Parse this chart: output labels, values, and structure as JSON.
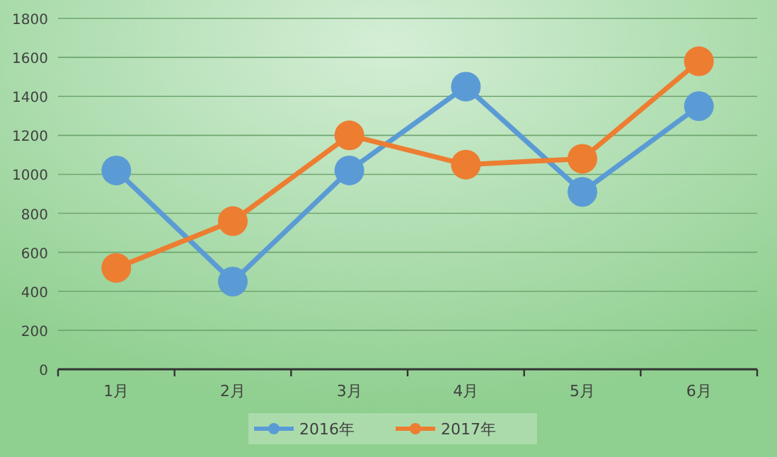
{
  "chart_data": {
    "type": "line",
    "categories": [
      "1月",
      "2月",
      "3月",
      "4月",
      "5月",
      "6月"
    ],
    "series": [
      {
        "name": "2016年",
        "color": "#5b9bd5",
        "values": [
          1020,
          450,
          1020,
          1450,
          910,
          1350
        ]
      },
      {
        "name": "2017年",
        "color": "#ed7d31",
        "values": [
          520,
          760,
          1200,
          1050,
          1080,
          1580
        ]
      }
    ],
    "ylim": [
      0,
      1800
    ],
    "yticks": [
      0,
      200,
      400,
      600,
      800,
      1000,
      1200,
      1400,
      1600,
      1800
    ],
    "grid": "y",
    "legend": "bottom",
    "marker": "circle",
    "line_style": "solid"
  }
}
